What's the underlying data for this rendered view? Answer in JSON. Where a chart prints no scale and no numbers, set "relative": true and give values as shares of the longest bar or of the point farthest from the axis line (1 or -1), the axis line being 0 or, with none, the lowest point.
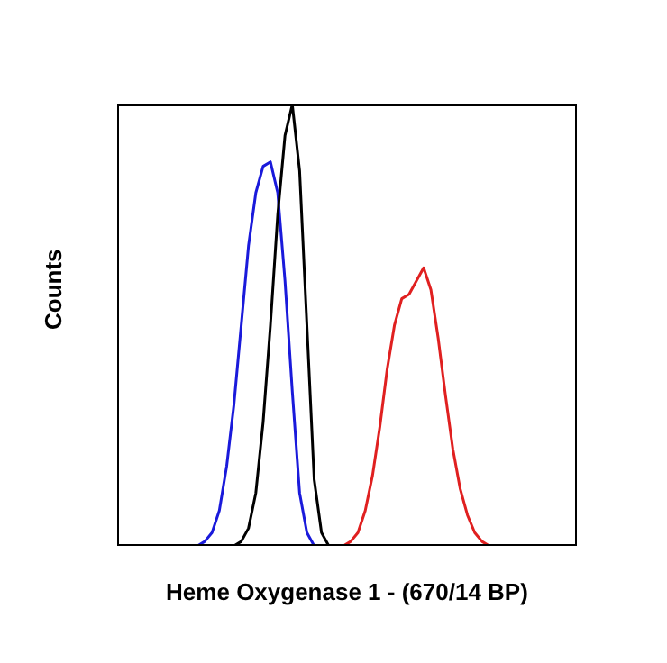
{
  "chart_data": {
    "type": "line",
    "relative": true,
    "ylabel": "Counts",
    "xlabel": "Heme Oxygenase 1 - (670/14 BP)",
    "marker": "none",
    "line_style": "solid",
    "categories": [
      null,
      null,
      null,
      null,
      null,
      null,
      null,
      null,
      null,
      null,
      null,
      null,
      null,
      null,
      null,
      null,
      null,
      null,
      null,
      null,
      null,
      null,
      null,
      null,
      null,
      null,
      null,
      null,
      null,
      null,
      null,
      null,
      null,
      null,
      null,
      null,
      null,
      null,
      null,
      null,
      null,
      null,
      null,
      null,
      null,
      null,
      null,
      null,
      null,
      null,
      null,
      null,
      null,
      null,
      null,
      null,
      null,
      null,
      null,
      null,
      null,
      null,
      null,
      null
    ],
    "series": [
      {
        "color": "#1a1adb",
        "values": [
          null,
          null,
          null,
          null,
          null,
          null,
          null,
          null,
          null,
          null,
          null,
          0,
          0.01,
          0.03,
          0.08,
          0.18,
          0.32,
          0.5,
          0.68,
          0.8,
          0.86,
          0.87,
          0.8,
          0.6,
          0.35,
          0.12,
          0.03,
          0,
          null,
          null,
          null,
          null,
          null,
          null,
          null,
          null,
          null,
          null,
          null,
          null,
          null,
          null,
          null,
          null,
          null,
          null,
          null,
          null,
          null,
          null,
          null,
          null,
          null,
          null,
          null,
          null,
          null,
          null,
          null,
          null,
          null,
          null,
          null,
          null
        ]
      },
      {
        "color": "#000000",
        "values": [
          null,
          null,
          null,
          null,
          null,
          null,
          null,
          null,
          null,
          null,
          null,
          null,
          null,
          null,
          null,
          null,
          0,
          0.01,
          0.04,
          0.12,
          0.28,
          0.5,
          0.75,
          0.93,
          1,
          0.85,
          0.5,
          0.15,
          0.03,
          0,
          null,
          null,
          null,
          null,
          null,
          null,
          null,
          null,
          null,
          null,
          null,
          null,
          null,
          null,
          null,
          null,
          null,
          null,
          null,
          null,
          null,
          null,
          null,
          null,
          null,
          null,
          null,
          null,
          null,
          null,
          null,
          null,
          null,
          null
        ]
      },
      {
        "color": "#e02020",
        "values": [
          null,
          null,
          null,
          null,
          null,
          null,
          null,
          null,
          null,
          null,
          null,
          null,
          null,
          null,
          null,
          null,
          null,
          null,
          null,
          null,
          null,
          null,
          null,
          null,
          null,
          null,
          null,
          null,
          null,
          null,
          null,
          0,
          0.01,
          0.03,
          0.08,
          0.16,
          0.27,
          0.4,
          0.5,
          0.56,
          0.57,
          0.6,
          0.63,
          0.58,
          0.47,
          0.34,
          0.22,
          0.13,
          0.07,
          0.03,
          0.01,
          0,
          null,
          null,
          null,
          null,
          null,
          null,
          null,
          null,
          null,
          null,
          null,
          null
        ]
      }
    ]
  }
}
